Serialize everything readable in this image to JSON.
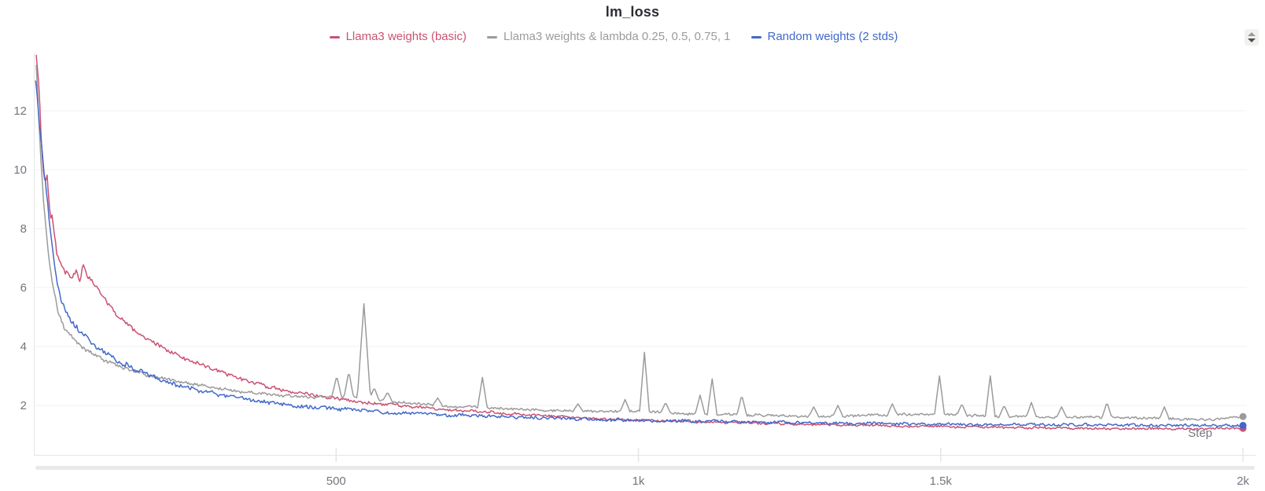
{
  "panel": {
    "title": "lm_loss"
  },
  "chart_data": {
    "type": "line",
    "title": "lm_loss",
    "xlabel": "Step",
    "ylabel": "",
    "xlim": [
      0,
      2000
    ],
    "ylim_visible": [
      0.3,
      13.95
    ],
    "grid": "horizontal",
    "legend_position": "top-center",
    "yticks": [
      2,
      4,
      6,
      8,
      10,
      12
    ],
    "xticks": [
      {
        "value": 500,
        "label": "500"
      },
      {
        "value": 1000,
        "label": "1k"
      },
      {
        "value": 1500,
        "label": "1.5k"
      },
      {
        "value": 2000,
        "label": "2k"
      }
    ],
    "series": [
      {
        "name": "Llama3 weights (basic)",
        "color": "#cb5273",
        "noise": [
          0.1,
          0.05
        ],
        "seed": 3,
        "end_value": 1.22,
        "points": [
          [
            4,
            13.9
          ],
          [
            7,
            13.3
          ],
          [
            10,
            12.2
          ],
          [
            13,
            10.8
          ],
          [
            16,
            9.9
          ],
          [
            19,
            9.6
          ],
          [
            22,
            9.8
          ],
          [
            25,
            9.0
          ],
          [
            28,
            8.3
          ],
          [
            31,
            8.5
          ],
          [
            34,
            7.8
          ],
          [
            38,
            7.2
          ],
          [
            42,
            6.9
          ],
          [
            46,
            6.7
          ],
          [
            52,
            6.5
          ],
          [
            58,
            6.4
          ],
          [
            64,
            6.3
          ],
          [
            70,
            6.5
          ],
          [
            76,
            6.3
          ],
          [
            82,
            6.8
          ],
          [
            88,
            6.4
          ],
          [
            94,
            6.2
          ],
          [
            100,
            6.1
          ],
          [
            108,
            5.9
          ],
          [
            116,
            5.6
          ],
          [
            124,
            5.4
          ],
          [
            132,
            5.2
          ],
          [
            142,
            5.0
          ],
          [
            152,
            4.8
          ],
          [
            162,
            4.6
          ],
          [
            172,
            4.45
          ],
          [
            182,
            4.3
          ],
          [
            192,
            4.2
          ],
          [
            205,
            4.05
          ],
          [
            220,
            3.9
          ],
          [
            235,
            3.75
          ],
          [
            250,
            3.6
          ],
          [
            265,
            3.5
          ],
          [
            282,
            3.35
          ],
          [
            300,
            3.2
          ],
          [
            320,
            3.05
          ],
          [
            340,
            2.9
          ],
          [
            360,
            2.8
          ],
          [
            380,
            2.68
          ],
          [
            400,
            2.58
          ],
          [
            425,
            2.47
          ],
          [
            450,
            2.38
          ],
          [
            475,
            2.3
          ],
          [
            500,
            2.23
          ],
          [
            540,
            2.12
          ],
          [
            580,
            2.03
          ],
          [
            620,
            1.96
          ],
          [
            660,
            1.9
          ],
          [
            700,
            1.84
          ],
          [
            750,
            1.77
          ],
          [
            800,
            1.7
          ],
          [
            850,
            1.64
          ],
          [
            900,
            1.59
          ],
          [
            950,
            1.54
          ],
          [
            1000,
            1.5
          ],
          [
            1060,
            1.46
          ],
          [
            1120,
            1.43
          ],
          [
            1180,
            1.4
          ],
          [
            1250,
            1.37
          ],
          [
            1320,
            1.34
          ],
          [
            1400,
            1.31
          ],
          [
            1500,
            1.28
          ],
          [
            1600,
            1.25
          ],
          [
            1700,
            1.23
          ],
          [
            1800,
            1.21
          ],
          [
            1900,
            1.2
          ],
          [
            2000,
            1.22
          ]
        ],
        "spikes": []
      },
      {
        "name": "Llama3 weights & lambda 0.25, 0.5, 0.75, 1",
        "color": "#9b9b9b",
        "noise": [
          0.04,
          0.055
        ],
        "seed": 11,
        "end_value": 1.62,
        "points": [
          [
            4,
            13.6
          ],
          [
            7,
            12.3
          ],
          [
            10,
            11.0
          ],
          [
            13,
            9.9
          ],
          [
            16,
            9.0
          ],
          [
            20,
            8.0
          ],
          [
            24,
            7.2
          ],
          [
            28,
            6.5
          ],
          [
            32,
            6.0
          ],
          [
            36,
            5.6
          ],
          [
            40,
            5.2
          ],
          [
            45,
            4.9
          ],
          [
            50,
            4.65
          ],
          [
            55,
            4.5
          ],
          [
            60,
            4.38
          ],
          [
            70,
            4.15
          ],
          [
            80,
            3.98
          ],
          [
            90,
            3.85
          ],
          [
            100,
            3.72
          ],
          [
            115,
            3.55
          ],
          [
            130,
            3.42
          ],
          [
            145,
            3.3
          ],
          [
            160,
            3.2
          ],
          [
            175,
            3.1
          ],
          [
            190,
            3.02
          ],
          [
            210,
            2.93
          ],
          [
            230,
            2.85
          ],
          [
            250,
            2.77
          ],
          [
            270,
            2.7
          ],
          [
            290,
            2.63
          ],
          [
            310,
            2.57
          ],
          [
            330,
            2.51
          ],
          [
            350,
            2.45
          ],
          [
            375,
            2.4
          ],
          [
            400,
            2.35
          ],
          [
            430,
            2.3
          ],
          [
            460,
            2.27
          ],
          [
            490,
            2.3
          ],
          [
            530,
            2.25
          ],
          [
            560,
            2.2
          ],
          [
            600,
            2.1
          ],
          [
            640,
            2.05
          ],
          [
            680,
            1.98
          ],
          [
            720,
            1.94
          ],
          [
            760,
            1.9
          ],
          [
            800,
            1.87
          ],
          [
            850,
            1.84
          ],
          [
            900,
            1.81
          ],
          [
            950,
            1.79
          ],
          [
            1000,
            1.8
          ],
          [
            1050,
            1.74
          ],
          [
            1100,
            1.7
          ],
          [
            1150,
            1.68
          ],
          [
            1200,
            1.66
          ],
          [
            1250,
            1.64
          ],
          [
            1300,
            1.63
          ],
          [
            1350,
            1.65
          ],
          [
            1400,
            1.68
          ],
          [
            1450,
            1.7
          ],
          [
            1500,
            1.72
          ],
          [
            1550,
            1.66
          ],
          [
            1600,
            1.63
          ],
          [
            1650,
            1.62
          ],
          [
            1700,
            1.6
          ],
          [
            1750,
            1.6
          ],
          [
            1800,
            1.58
          ],
          [
            1850,
            1.56
          ],
          [
            1900,
            1.53
          ],
          [
            1950,
            1.52
          ],
          [
            2000,
            1.62
          ]
        ],
        "spikes": [
          [
            501,
            3.0
          ],
          [
            521,
            3.15
          ],
          [
            546,
            5.45
          ],
          [
            563,
            2.6
          ],
          [
            585,
            2.45
          ],
          [
            668,
            2.25
          ],
          [
            742,
            2.95
          ],
          [
            900,
            2.05
          ],
          [
            978,
            2.2
          ],
          [
            1010,
            3.8
          ],
          [
            1045,
            2.1
          ],
          [
            1102,
            2.35
          ],
          [
            1122,
            2.9
          ],
          [
            1171,
            2.35
          ],
          [
            1290,
            1.95
          ],
          [
            1330,
            2.0
          ],
          [
            1420,
            2.05
          ],
          [
            1498,
            3.0
          ],
          [
            1535,
            2.05
          ],
          [
            1582,
            3.0
          ],
          [
            1605,
            2.0
          ],
          [
            1650,
            2.1
          ],
          [
            1700,
            1.95
          ],
          [
            1775,
            2.1
          ],
          [
            1870,
            1.95
          ]
        ]
      },
      {
        "name": "Random weights (2 stds)",
        "color": "#4169c8",
        "noise": [
          0.08,
          0.065
        ],
        "seed": 7,
        "end_value": 1.32,
        "points": [
          [
            3,
            13.1
          ],
          [
            6,
            12.4
          ],
          [
            9,
            11.6
          ],
          [
            12,
            10.9
          ],
          [
            15,
            10.3
          ],
          [
            18,
            9.7
          ],
          [
            22,
            9.0
          ],
          [
            26,
            8.2
          ],
          [
            30,
            7.5
          ],
          [
            34,
            6.8
          ],
          [
            38,
            6.2
          ],
          [
            42,
            5.8
          ],
          [
            46,
            5.5
          ],
          [
            50,
            5.3
          ],
          [
            55,
            5.1
          ],
          [
            60,
            4.9
          ],
          [
            66,
            4.75
          ],
          [
            72,
            4.6
          ],
          [
            78,
            4.5
          ],
          [
            85,
            4.35
          ],
          [
            92,
            4.2
          ],
          [
            100,
            4.05
          ],
          [
            110,
            3.9
          ],
          [
            120,
            3.75
          ],
          [
            130,
            3.62
          ],
          [
            140,
            3.5
          ],
          [
            150,
            3.4
          ],
          [
            160,
            3.3
          ],
          [
            172,
            3.18
          ],
          [
            184,
            3.08
          ],
          [
            196,
            2.98
          ],
          [
            210,
            2.88
          ],
          [
            225,
            2.78
          ],
          [
            240,
            2.68
          ],
          [
            258,
            2.58
          ],
          [
            276,
            2.5
          ],
          [
            295,
            2.42
          ],
          [
            315,
            2.34
          ],
          [
            335,
            2.27
          ],
          [
            355,
            2.2
          ],
          [
            375,
            2.14
          ],
          [
            400,
            2.07
          ],
          [
            430,
            2.0
          ],
          [
            460,
            1.95
          ],
          [
            500,
            1.88
          ],
          [
            540,
            1.83
          ],
          [
            580,
            1.78
          ],
          [
            620,
            1.74
          ],
          [
            660,
            1.7
          ],
          [
            700,
            1.67
          ],
          [
            750,
            1.63
          ],
          [
            800,
            1.6
          ],
          [
            850,
            1.57
          ],
          [
            900,
            1.54
          ],
          [
            950,
            1.52
          ],
          [
            1000,
            1.5
          ],
          [
            1100,
            1.46
          ],
          [
            1200,
            1.43
          ],
          [
            1300,
            1.4
          ],
          [
            1400,
            1.38
          ],
          [
            1500,
            1.36
          ],
          [
            1600,
            1.35
          ],
          [
            1700,
            1.34
          ],
          [
            1800,
            1.33
          ],
          [
            1900,
            1.32
          ],
          [
            2000,
            1.32
          ]
        ],
        "spikes": []
      }
    ]
  },
  "style": {
    "grid_color": "#f1f1f2",
    "axis_color": "#e5e5e7",
    "tick_label_color": "#73767e",
    "title_color": "#2b2e33"
  }
}
